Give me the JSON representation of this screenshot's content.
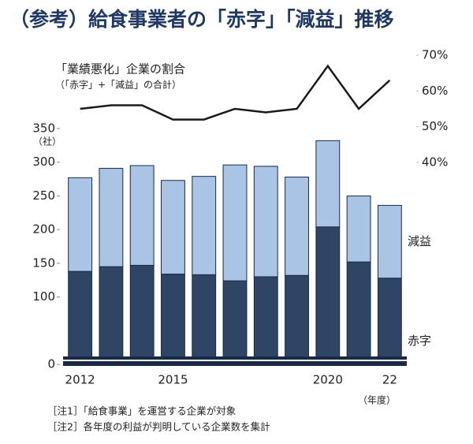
{
  "chart_data": {
    "type": "bar",
    "title": "（参考）給食事業者の「赤字」「減益」推移",
    "subtitle": "（「赤字」+「減益」の合計）",
    "y_unit": "（社）",
    "x_unit": "（年度）",
    "notes": [
      "［注1］「給食事業」を運営する企業が対象",
      "［注2］各年度の利益が判明している企業数を集計"
    ],
    "categories": [
      "2012",
      null,
      null,
      "2015",
      null,
      null,
      null,
      null,
      "2020",
      null,
      "22"
    ],
    "series": [
      {
        "name": "赤字",
        "color": "#2f4566",
        "values": [
          138,
          145,
          147,
          134,
          133,
          124,
          130,
          132,
          204,
          152,
          128
        ]
      },
      {
        "name": "減益",
        "color": "#aac4e6",
        "values": [
          139,
          146,
          148,
          139,
          146,
          172,
          164,
          146,
          128,
          98,
          108
        ]
      },
      {
        "name": "「業績悪化」企業の割合",
        "type": "line",
        "axis": "y2",
        "color": "#1a1a1a",
        "values": [
          55,
          56,
          56,
          52,
          52,
          55,
          54,
          55,
          67,
          55,
          63
        ]
      }
    ],
    "ylim": [
      0,
      350
    ],
    "yticks": [
      0,
      100,
      150,
      200,
      250,
      300,
      350
    ],
    "y2lim": [
      40,
      70
    ],
    "y2ticks": [
      {
        "value": 40,
        "label": "40%"
      },
      {
        "value": 50,
        "label": "50%"
      },
      {
        "value": 60,
        "label": "60%"
      },
      {
        "value": 70,
        "label": "70%"
      }
    ]
  }
}
